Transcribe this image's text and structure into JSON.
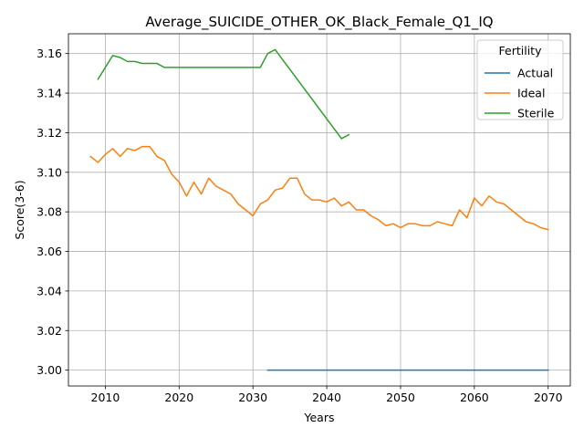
{
  "chart_data": {
    "type": "line",
    "title": "Average_SUICIDE_OTHER_OK_Black_Female_Q1_IQ",
    "xlabel": "Years",
    "ylabel": "Score(3-6)",
    "xlim": [
      2005,
      2073
    ],
    "ylim": [
      2.992,
      3.17
    ],
    "xticks": [
      2010,
      2020,
      2030,
      2040,
      2050,
      2060,
      2070
    ],
    "yticks": [
      3.0,
      3.02,
      3.04,
      3.06,
      3.08,
      3.1,
      3.12,
      3.14,
      3.16
    ],
    "xtick_labels": [
      "2010",
      "2020",
      "2030",
      "2040",
      "2050",
      "2060",
      "2070"
    ],
    "ytick_labels": [
      "3.00",
      "3.02",
      "3.04",
      "3.06",
      "3.08",
      "3.10",
      "3.12",
      "3.14",
      "3.16"
    ],
    "grid": true,
    "legend": {
      "title": "Fertility",
      "position": "top-right"
    },
    "series": [
      {
        "name": "Actual",
        "color": "#1f77b4",
        "points": [
          [
            2032,
            3.0
          ],
          [
            2070,
            3.0
          ]
        ]
      },
      {
        "name": "Ideal",
        "color": "#ff7f0e",
        "points": [
          [
            2008,
            3.108
          ],
          [
            2009,
            3.105
          ],
          [
            2010,
            3.109
          ],
          [
            2011,
            3.112
          ],
          [
            2012,
            3.108
          ],
          [
            2013,
            3.112
          ],
          [
            2014,
            3.111
          ],
          [
            2015,
            3.113
          ],
          [
            2016,
            3.113
          ],
          [
            2017,
            3.108
          ],
          [
            2018,
            3.106
          ],
          [
            2019,
            3.099
          ],
          [
            2020,
            3.095
          ],
          [
            2021,
            3.088
          ],
          [
            2022,
            3.095
          ],
          [
            2023,
            3.089
          ],
          [
            2024,
            3.097
          ],
          [
            2025,
            3.093
          ],
          [
            2026,
            3.091
          ],
          [
            2027,
            3.089
          ],
          [
            2028,
            3.084
          ],
          [
            2029,
            3.081
          ],
          [
            2030,
            3.078
          ],
          [
            2031,
            3.084
          ],
          [
            2032,
            3.086
          ],
          [
            2033,
            3.091
          ],
          [
            2034,
            3.092
          ],
          [
            2035,
            3.097
          ],
          [
            2036,
            3.097
          ],
          [
            2037,
            3.089
          ],
          [
            2038,
            3.086
          ],
          [
            2039,
            3.086
          ],
          [
            2040,
            3.085
          ],
          [
            2041,
            3.087
          ],
          [
            2042,
            3.083
          ],
          [
            2043,
            3.085
          ],
          [
            2044,
            3.081
          ],
          [
            2045,
            3.081
          ],
          [
            2046,
            3.078
          ],
          [
            2047,
            3.076
          ],
          [
            2048,
            3.073
          ],
          [
            2049,
            3.074
          ],
          [
            2050,
            3.072
          ],
          [
            2051,
            3.074
          ],
          [
            2052,
            3.074
          ],
          [
            2053,
            3.073
          ],
          [
            2054,
            3.073
          ],
          [
            2055,
            3.075
          ],
          [
            2056,
            3.074
          ],
          [
            2057,
            3.073
          ],
          [
            2058,
            3.081
          ],
          [
            2059,
            3.077
          ],
          [
            2060,
            3.087
          ],
          [
            2061,
            3.083
          ],
          [
            2062,
            3.088
          ],
          [
            2063,
            3.085
          ],
          [
            2064,
            3.084
          ],
          [
            2065,
            3.081
          ],
          [
            2066,
            3.078
          ],
          [
            2067,
            3.075
          ],
          [
            2068,
            3.074
          ],
          [
            2069,
            3.072
          ],
          [
            2070,
            3.071
          ]
        ]
      },
      {
        "name": "Sterile",
        "color": "#2ca02c",
        "points": [
          [
            2009,
            3.147
          ],
          [
            2010,
            3.153
          ],
          [
            2011,
            3.159
          ],
          [
            2012,
            3.158
          ],
          [
            2013,
            3.156
          ],
          [
            2014,
            3.156
          ],
          [
            2015,
            3.155
          ],
          [
            2016,
            3.155
          ],
          [
            2017,
            3.155
          ],
          [
            2018,
            3.153
          ],
          [
            2019,
            3.153
          ],
          [
            2020,
            3.153
          ],
          [
            2021,
            3.153
          ],
          [
            2022,
            3.153
          ],
          [
            2023,
            3.153
          ],
          [
            2024,
            3.153
          ],
          [
            2025,
            3.153
          ],
          [
            2026,
            3.153
          ],
          [
            2027,
            3.153
          ],
          [
            2028,
            3.153
          ],
          [
            2029,
            3.153
          ],
          [
            2030,
            3.153
          ],
          [
            2031,
            3.153
          ],
          [
            2032,
            3.16
          ],
          [
            2033,
            3.162
          ],
          [
            2042,
            3.117
          ],
          [
            2043,
            3.119
          ]
        ]
      }
    ]
  }
}
